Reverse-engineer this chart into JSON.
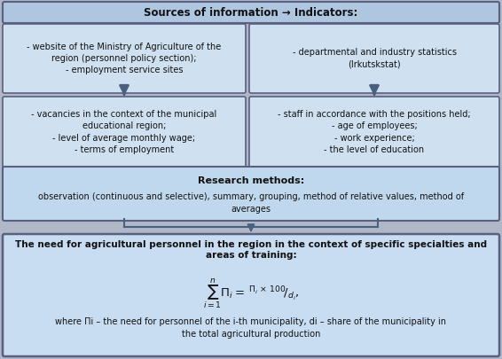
{
  "title": "Sources of information → Indicators:",
  "box1_text": "- website of the Ministry of Agriculture of the\nregion (personnel policy section);\n- employment service sites",
  "box2_text": "- departmental and industry statistics\n(Irkutskstat)",
  "box3_text": "- vacancies in the context of the municipal\neducational region;\n- level of average monthly wage;\n- terms of employment",
  "box4_text": "- staff in accordance with the positions held;\n- age of employees;\n- work experience;\n- the level of education",
  "research_title": "Research methods:",
  "research_body": "observation (continuous and selective), summary, grouping, method of relative values, method of\naverages",
  "result_title": "The need for agricultural personnel in the region in the context of specific specialties and\nareas of training:",
  "result_note": "where Πi – the need for personnel of the i-th municipality, di – share of the municipality in\nthe total agricultural production",
  "bg_outer": "#b0b8c8",
  "bg_header": "#afc6e0",
  "bg_box": "#cfe0f0",
  "bg_research": "#c0d8ee",
  "bg_result": "#c8dcf2",
  "border_color": "#5a6080",
  "arrow_color": "#4a6080",
  "text_color": "#111111"
}
